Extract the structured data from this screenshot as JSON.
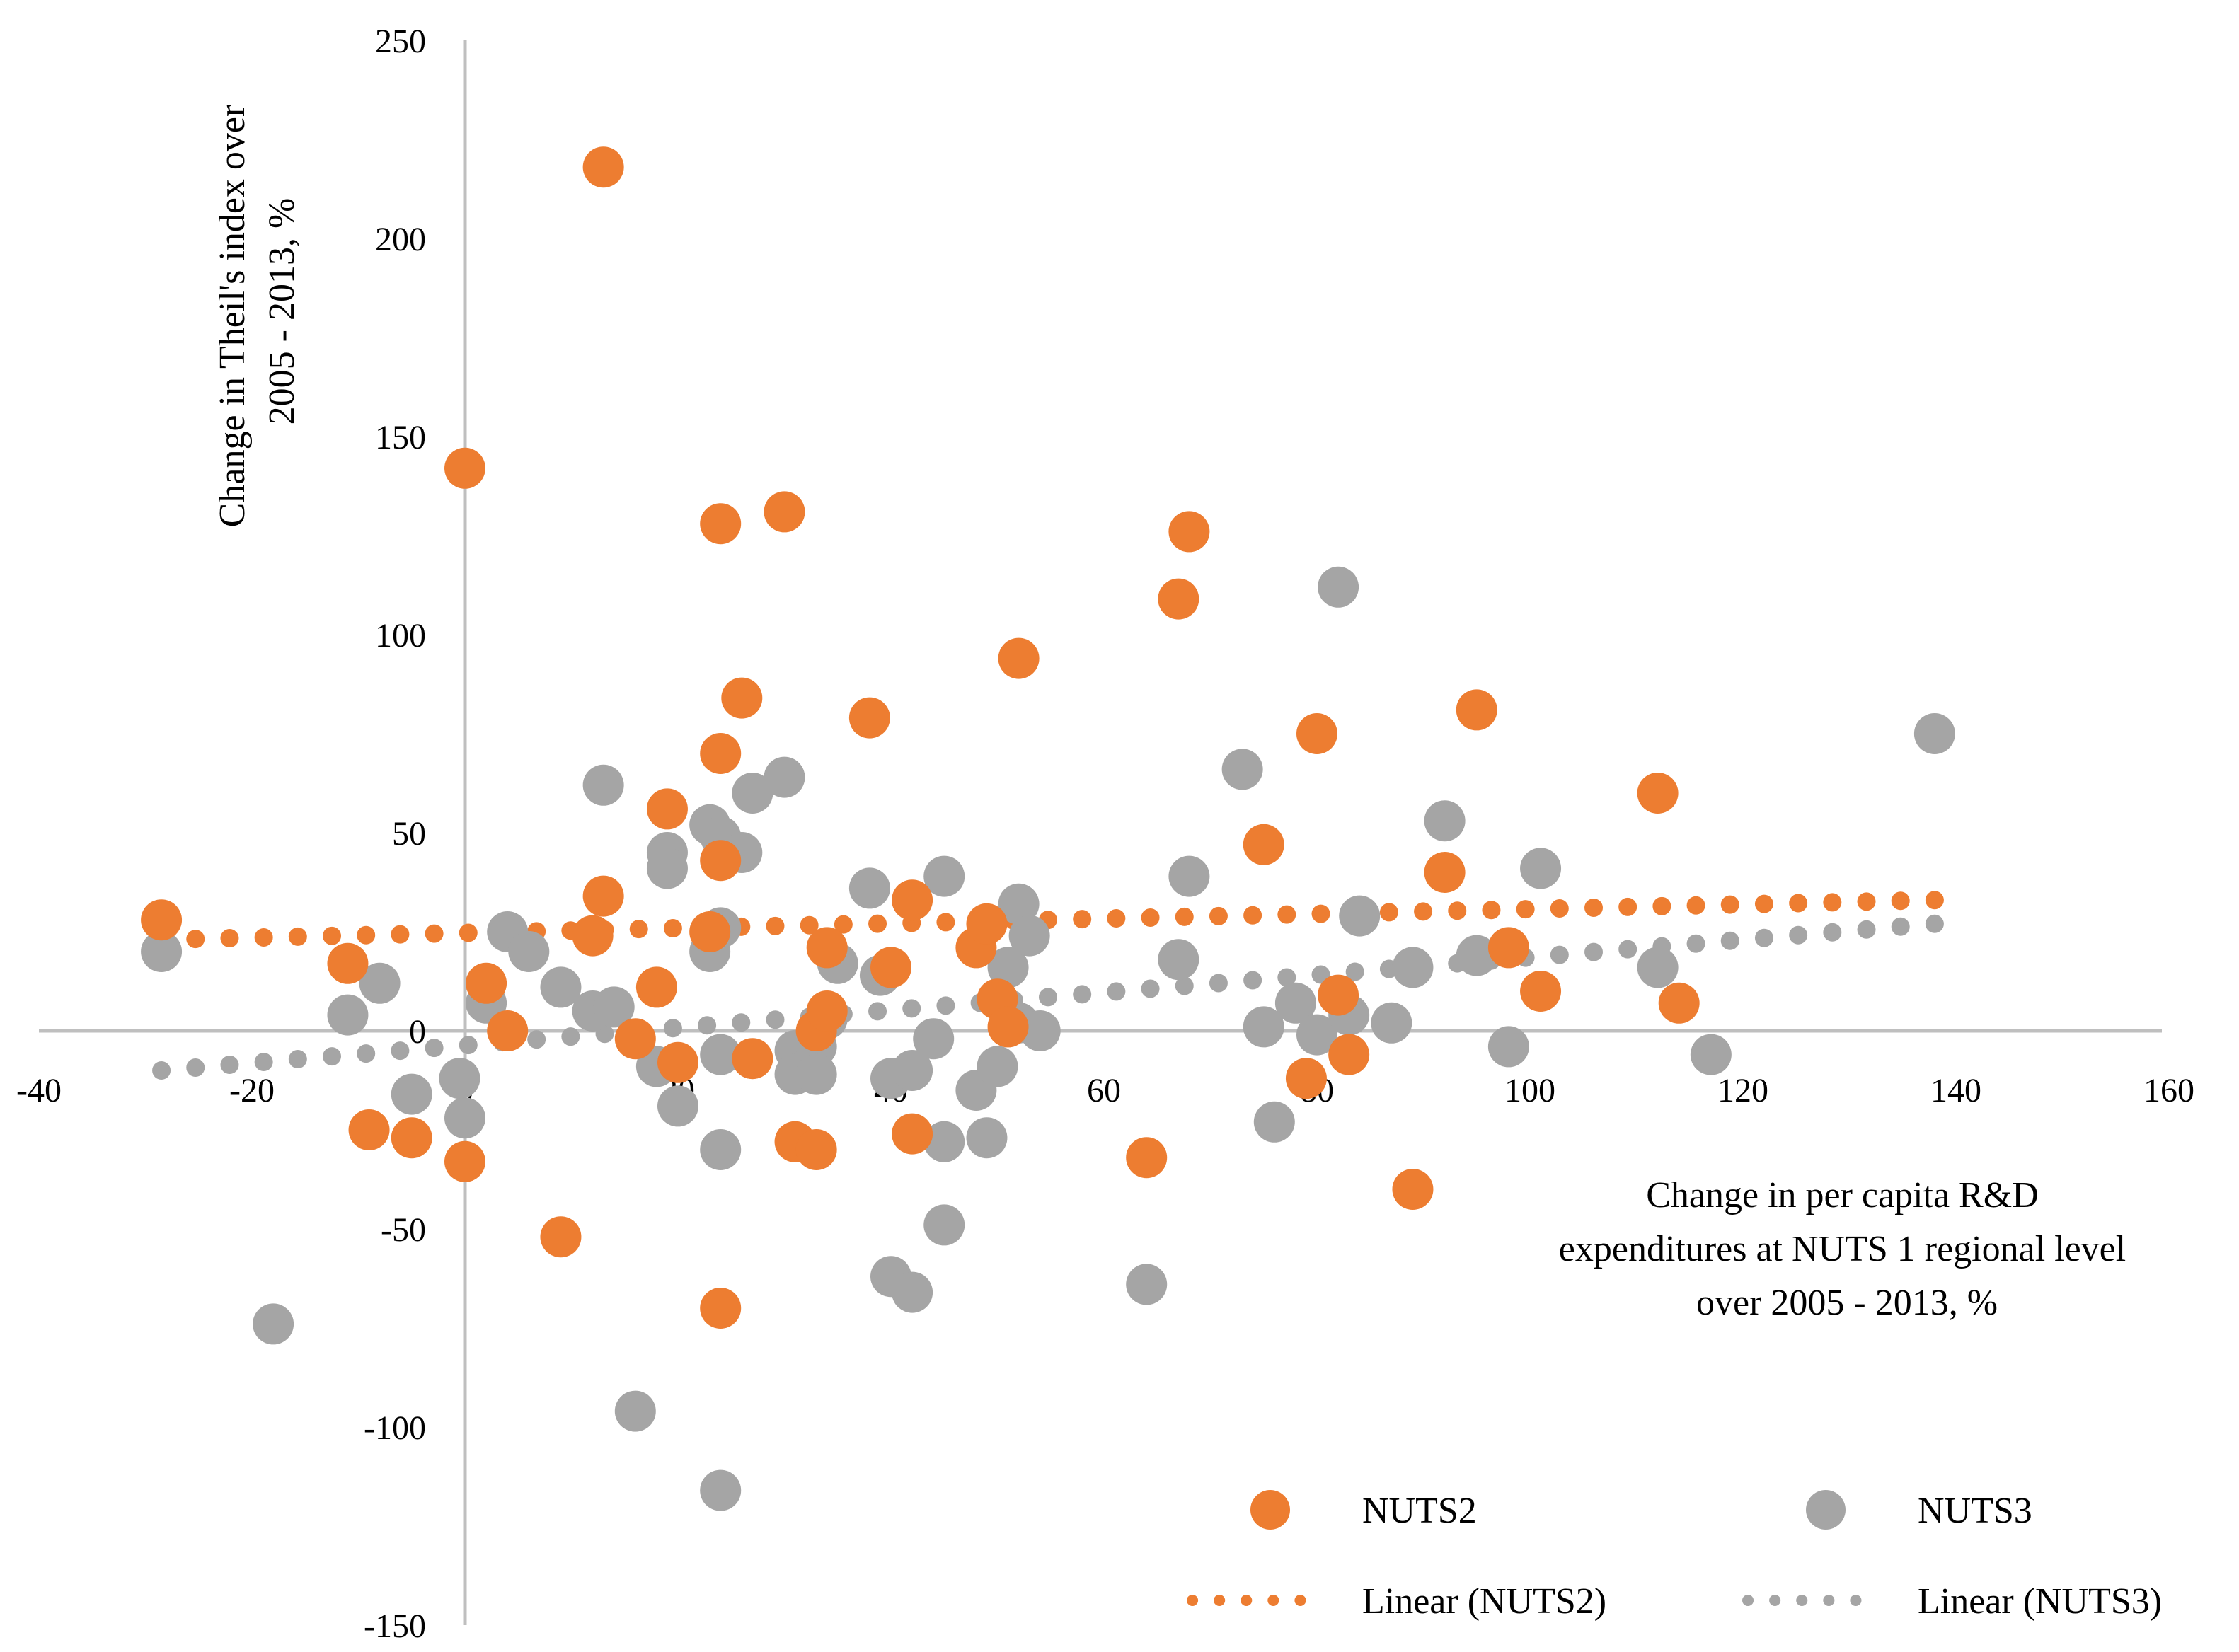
{
  "chart_data": {
    "type": "scatter",
    "xlabel": "Change in per capita R&D expenditures at NUTS 1 regional level over 2005 - 2013, %",
    "xlabel_lines": [
      "Change in per capita R&D",
      "expenditures at NUTS 1 regional level",
      "over 2005 - 2013, %"
    ],
    "ylabel": "Change in Theil's index over 2005 - 2013, %",
    "ylabel_lines": [
      "Change in Theil's index over",
      "2005 - 2013, %"
    ],
    "xlim": [
      -40,
      160
    ],
    "ylim": [
      -150,
      250
    ],
    "x_ticks": [
      -40,
      -20,
      0,
      20,
      40,
      60,
      80,
      100,
      120,
      140,
      160
    ],
    "y_ticks": [
      -150,
      -100,
      -50,
      0,
      50,
      100,
      150,
      200,
      250
    ],
    "grid": false,
    "legend_position": "bottom-right",
    "series": [
      {
        "name": "NUTS2",
        "color": "#ED7D31",
        "points": [
          [
            -28.5,
            28
          ],
          [
            -11,
            17
          ],
          [
            -9,
            -25
          ],
          [
            -5,
            -27
          ],
          [
            0,
            142
          ],
          [
            0,
            -33
          ],
          [
            2,
            12
          ],
          [
            4,
            0
          ],
          [
            9,
            -52
          ],
          [
            12,
            24
          ],
          [
            13,
            218
          ],
          [
            13,
            34
          ],
          [
            16,
            -2
          ],
          [
            18,
            11
          ],
          [
            19,
            56
          ],
          [
            20,
            -8
          ],
          [
            23,
            25
          ],
          [
            24,
            128
          ],
          [
            24,
            70
          ],
          [
            24,
            43
          ],
          [
            24,
            -70
          ],
          [
            26,
            84
          ],
          [
            27,
            -7
          ],
          [
            30,
            131
          ],
          [
            31,
            -28
          ],
          [
            33,
            0
          ],
          [
            33,
            -30
          ],
          [
            34,
            21
          ],
          [
            34,
            5
          ],
          [
            38,
            79
          ],
          [
            40,
            16
          ],
          [
            42,
            33
          ],
          [
            42,
            -26
          ],
          [
            48,
            21
          ],
          [
            49,
            27
          ],
          [
            50,
            8
          ],
          [
            51,
            1
          ],
          [
            52,
            94
          ],
          [
            64,
            -32
          ],
          [
            67,
            109
          ],
          [
            68,
            126
          ],
          [
            75,
            47
          ],
          [
            79,
            -12
          ],
          [
            80,
            75
          ],
          [
            82,
            9
          ],
          [
            83,
            -6
          ],
          [
            89,
            -40
          ],
          [
            92,
            40
          ],
          [
            95,
            81
          ],
          [
            98,
            21
          ],
          [
            101,
            10
          ],
          [
            112,
            60
          ],
          [
            114,
            7
          ]
        ]
      },
      {
        "name": "NUTS3",
        "color": "#A5A5A5",
        "points": [
          [
            -28.5,
            20
          ],
          [
            -18,
            -74
          ],
          [
            -11,
            4
          ],
          [
            -8,
            12
          ],
          [
            -5,
            -16
          ],
          [
            -0.5,
            -12
          ],
          [
            0,
            -22
          ],
          [
            2,
            7
          ],
          [
            4,
            25
          ],
          [
            6,
            20
          ],
          [
            9,
            11
          ],
          [
            12,
            5
          ],
          [
            13,
            62
          ],
          [
            14,
            6
          ],
          [
            16,
            -96
          ],
          [
            18,
            -9
          ],
          [
            19,
            45
          ],
          [
            19,
            41
          ],
          [
            20,
            -19
          ],
          [
            23,
            20
          ],
          [
            23,
            52
          ],
          [
            24,
            49
          ],
          [
            24,
            26
          ],
          [
            24,
            -6
          ],
          [
            24,
            -30
          ],
          [
            24,
            -116
          ],
          [
            26,
            45
          ],
          [
            27,
            60
          ],
          [
            30,
            64
          ],
          [
            31,
            -5
          ],
          [
            31,
            -11
          ],
          [
            33,
            -4
          ],
          [
            33,
            -11
          ],
          [
            34,
            3
          ],
          [
            35,
            17
          ],
          [
            38,
            36
          ],
          [
            39,
            14
          ],
          [
            40,
            -12
          ],
          [
            40,
            -62
          ],
          [
            42,
            -10
          ],
          [
            42,
            -66
          ],
          [
            44,
            -2
          ],
          [
            45,
            -28
          ],
          [
            45,
            -49
          ],
          [
            45,
            39
          ],
          [
            48,
            -15
          ],
          [
            49,
            -27
          ],
          [
            50,
            -9
          ],
          [
            51,
            16
          ],
          [
            52,
            2
          ],
          [
            52,
            32
          ],
          [
            53,
            24
          ],
          [
            54,
            0
          ],
          [
            64,
            -64
          ],
          [
            67,
            18
          ],
          [
            68,
            39
          ],
          [
            73,
            66
          ],
          [
            75,
            1
          ],
          [
            76,
            -23
          ],
          [
            78,
            7
          ],
          [
            80,
            -1
          ],
          [
            82,
            112
          ],
          [
            83,
            4
          ],
          [
            84,
            29
          ],
          [
            87,
            2
          ],
          [
            89,
            16
          ],
          [
            92,
            53
          ],
          [
            95,
            19
          ],
          [
            98,
            -4
          ],
          [
            101,
            41
          ],
          [
            112,
            16
          ],
          [
            117,
            -6
          ],
          [
            138,
            75
          ]
        ]
      }
    ],
    "trendlines": [
      {
        "name": "Linear (NUTS2)",
        "color": "#ED7D31",
        "x_range": [
          -28.5,
          138
        ],
        "y_range": [
          23,
          33
        ]
      },
      {
        "name": "Linear (NUTS3)",
        "color": "#A5A5A5",
        "x_range": [
          -28.5,
          138
        ],
        "y_range": [
          -10,
          27
        ]
      }
    ]
  },
  "legend": {
    "items": [
      {
        "label": "NUTS2",
        "kind": "marker",
        "color": "#ED7D31"
      },
      {
        "label": "NUTS3",
        "kind": "marker",
        "color": "#A5A5A5"
      },
      {
        "label": "Linear (NUTS2)",
        "kind": "line",
        "color": "#ED7D31"
      },
      {
        "label": "Linear (NUTS3)",
        "kind": "line",
        "color": "#A5A5A5"
      }
    ]
  }
}
